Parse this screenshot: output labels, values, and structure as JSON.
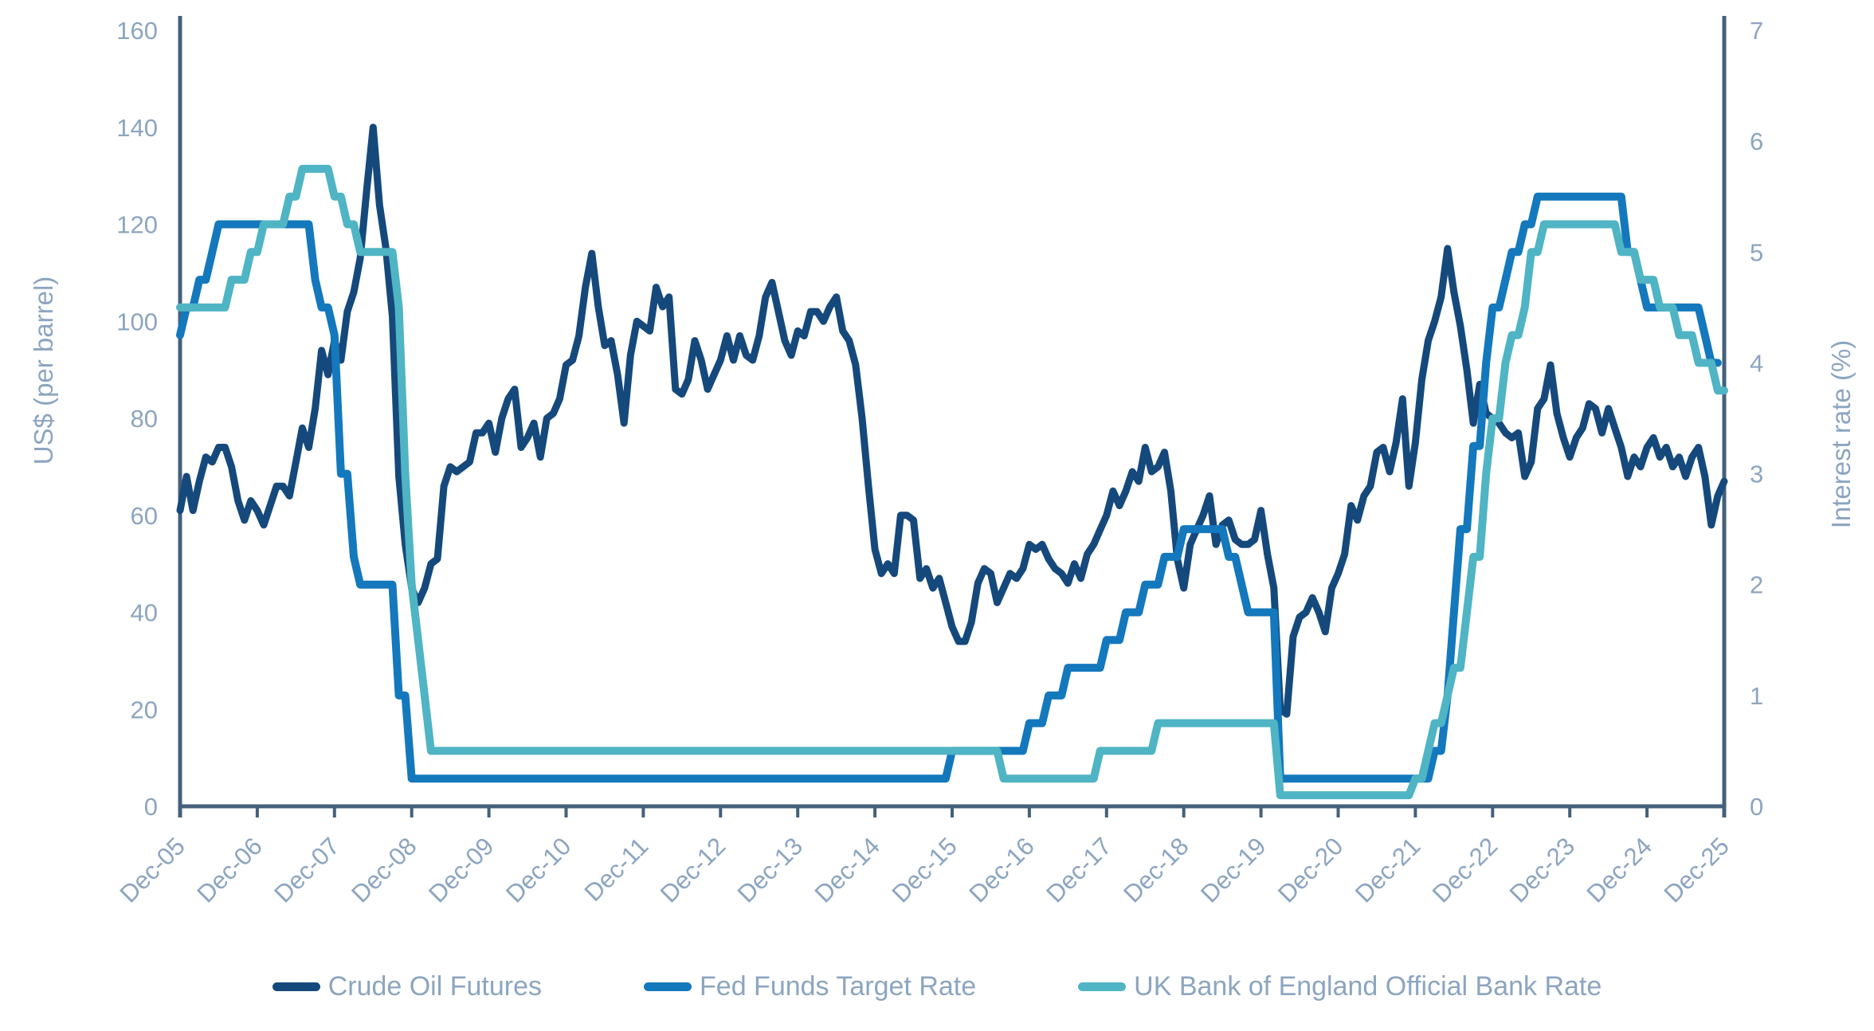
{
  "chart_data": {
    "type": "line",
    "title": "",
    "frequency": "monthly",
    "x_start": "Dec-05",
    "x_end": "Dec-25",
    "x_tick_labels": [
      "Dec-05",
      "Dec-06",
      "Dec-07",
      "Dec-08",
      "Dec-09",
      "Dec-10",
      "Dec-11",
      "Dec-12",
      "Dec-13",
      "Dec-14",
      "Dec-15",
      "Dec-16",
      "Dec-17",
      "Dec-18",
      "Dec-19",
      "Dec-20",
      "Dec-21",
      "Dec-22",
      "Dec-23",
      "Dec-24",
      "Dec-25"
    ],
    "left_axis": {
      "label": "US$ (per barrel)",
      "min": 0,
      "max": 160,
      "step": 20,
      "tick_labels": [
        "0",
        "20",
        "40",
        "60",
        "80",
        "100",
        "120",
        "140",
        "160"
      ]
    },
    "right_axis": {
      "label": "Interest rate (%)",
      "min": 0,
      "max": 7,
      "step": 1,
      "tick_labels": [
        "0",
        "1",
        "2",
        "3",
        "4",
        "5",
        "6",
        "7"
      ]
    },
    "grid": false,
    "legend_position": "bottom",
    "colors": {
      "axis_line": "#44607B",
      "tick_label": "#8CA5C0"
    },
    "series": [
      {
        "name": "Crude Oil Futures",
        "axis": "left",
        "color": "#15497C",
        "stroke_width": 9,
        "values": [
          61,
          68,
          61,
          67,
          72,
          71,
          74,
          74,
          70,
          63,
          59,
          63,
          61,
          58,
          62,
          66,
          66,
          64,
          71,
          78,
          74,
          82,
          94,
          89,
          96,
          92,
          102,
          106,
          113,
          127,
          140,
          124,
          115,
          101,
          68,
          54,
          45,
          42,
          45,
          50,
          51,
          66,
          70,
          69,
          70,
          71,
          77,
          77,
          79,
          73,
          80,
          84,
          86,
          74,
          76,
          79,
          72,
          80,
          81,
          84,
          91,
          92,
          97,
          107,
          114,
          103,
          95,
          96,
          89,
          79,
          93,
          100,
          99,
          98,
          107,
          103,
          105,
          86,
          85,
          88,
          96,
          92,
          86,
          89,
          92,
          97,
          92,
          97,
          93,
          92,
          97,
          105,
          108,
          102,
          96,
          93,
          98,
          97,
          102,
          102,
          100,
          103,
          105,
          98,
          96,
          91,
          80,
          66,
          53,
          48,
          50,
          48,
          60,
          60,
          59,
          47,
          49,
          45,
          47,
          42,
          37,
          34,
          34,
          38,
          46,
          49,
          48,
          42,
          45,
          48,
          47,
          49,
          54,
          53,
          54,
          51,
          49,
          48,
          46,
          50,
          47,
          52,
          54,
          57,
          60,
          65,
          62,
          65,
          69,
          67,
          74,
          69,
          70,
          73,
          65,
          51,
          45,
          54,
          57,
          60,
          64,
          54,
          58,
          59,
          55,
          54,
          54,
          55,
          61,
          52,
          45,
          20,
          19,
          35,
          39,
          40,
          43,
          40,
          36,
          45,
          48,
          52,
          62,
          59,
          64,
          66,
          73,
          74,
          69,
          75,
          84,
          66,
          75,
          88,
          96,
          100,
          105,
          115,
          106,
          99,
          90,
          79,
          87,
          81,
          80,
          79,
          77,
          76,
          77,
          68,
          71,
          82,
          84,
          91,
          81,
          76,
          72,
          76,
          78,
          83,
          82,
          77,
          82,
          78,
          74,
          68,
          72,
          70,
          74,
          76,
          72,
          74,
          70,
          72,
          68,
          72,
          74,
          68,
          58,
          64,
          67
        ]
      },
      {
        "name": "Fed Funds Target Rate",
        "axis": "right",
        "color": "#1478BD",
        "stroke_width": 10,
        "values": [
          4.25,
          4.5,
          4.5,
          4.75,
          4.75,
          5,
          5.25,
          5.25,
          5.25,
          5.25,
          5.25,
          5.25,
          5.25,
          5.25,
          5.25,
          5.25,
          5.25,
          5.25,
          5.25,
          5.25,
          5.25,
          4.75,
          4.5,
          4.5,
          4.25,
          3,
          3,
          2.25,
          2,
          2,
          2,
          2,
          2,
          2,
          1,
          1,
          0.25,
          0.25,
          0.25,
          0.25,
          0.25,
          0.25,
          0.25,
          0.25,
          0.25,
          0.25,
          0.25,
          0.25,
          0.25,
          0.25,
          0.25,
          0.25,
          0.25,
          0.25,
          0.25,
          0.25,
          0.25,
          0.25,
          0.25,
          0.25,
          0.25,
          0.25,
          0.25,
          0.25,
          0.25,
          0.25,
          0.25,
          0.25,
          0.25,
          0.25,
          0.25,
          0.25,
          0.25,
          0.25,
          0.25,
          0.25,
          0.25,
          0.25,
          0.25,
          0.25,
          0.25,
          0.25,
          0.25,
          0.25,
          0.25,
          0.25,
          0.25,
          0.25,
          0.25,
          0.25,
          0.25,
          0.25,
          0.25,
          0.25,
          0.25,
          0.25,
          0.25,
          0.25,
          0.25,
          0.25,
          0.25,
          0.25,
          0.25,
          0.25,
          0.25,
          0.25,
          0.25,
          0.25,
          0.25,
          0.25,
          0.25,
          0.25,
          0.25,
          0.25,
          0.25,
          0.25,
          0.25,
          0.25,
          0.25,
          0.25,
          0.5,
          0.5,
          0.5,
          0.5,
          0.5,
          0.5,
          0.5,
          0.5,
          0.5,
          0.5,
          0.5,
          0.5,
          0.75,
          0.75,
          0.75,
          1,
          1,
          1,
          1.25,
          1.25,
          1.25,
          1.25,
          1.25,
          1.25,
          1.5,
          1.5,
          1.5,
          1.75,
          1.75,
          1.75,
          2,
          2,
          2,
          2.25,
          2.25,
          2.25,
          2.5,
          2.5,
          2.5,
          2.5,
          2.5,
          2.5,
          2.5,
          2.25,
          2.25,
          2,
          1.75,
          1.75,
          1.75,
          1.75,
          1.75,
          0.25,
          0.25,
          0.25,
          0.25,
          0.25,
          0.25,
          0.25,
          0.25,
          0.25,
          0.25,
          0.25,
          0.25,
          0.25,
          0.25,
          0.25,
          0.25,
          0.25,
          0.25,
          0.25,
          0.25,
          0.25,
          0.25,
          0.25,
          0.25,
          0.5,
          0.5,
          1,
          1.75,
          2.5,
          2.5,
          3.25,
          3.25,
          4,
          4.5,
          4.5,
          4.75,
          5,
          5,
          5.25,
          5.25,
          5.5,
          5.5,
          5.5,
          5.5,
          5.5,
          5.5,
          5.5,
          5.5,
          5.5,
          5.5,
          5.5,
          5.5,
          5.5,
          5.5,
          5,
          5,
          4.75,
          4.5,
          4.5,
          4.5,
          4.5,
          4.5,
          4.5,
          4.5,
          4.5,
          4.5,
          4.25,
          4,
          4,
          null
        ]
      },
      {
        "name": "UK Bank of England Official Bank Rate",
        "axis": "right",
        "color": "#4FB4C4",
        "stroke_width": 10,
        "values": [
          4.5,
          4.5,
          4.5,
          4.5,
          4.5,
          4.5,
          4.5,
          4.5,
          4.75,
          4.75,
          4.75,
          5,
          5,
          5.25,
          5.25,
          5.25,
          5.25,
          5.5,
          5.5,
          5.75,
          5.75,
          5.75,
          5.75,
          5.75,
          5.5,
          5.5,
          5.25,
          5.25,
          5,
          5,
          5,
          5,
          5,
          5,
          4.5,
          3,
          2,
          1.5,
          1,
          0.5,
          0.5,
          0.5,
          0.5,
          0.5,
          0.5,
          0.5,
          0.5,
          0.5,
          0.5,
          0.5,
          0.5,
          0.5,
          0.5,
          0.5,
          0.5,
          0.5,
          0.5,
          0.5,
          0.5,
          0.5,
          0.5,
          0.5,
          0.5,
          0.5,
          0.5,
          0.5,
          0.5,
          0.5,
          0.5,
          0.5,
          0.5,
          0.5,
          0.5,
          0.5,
          0.5,
          0.5,
          0.5,
          0.5,
          0.5,
          0.5,
          0.5,
          0.5,
          0.5,
          0.5,
          0.5,
          0.5,
          0.5,
          0.5,
          0.5,
          0.5,
          0.5,
          0.5,
          0.5,
          0.5,
          0.5,
          0.5,
          0.5,
          0.5,
          0.5,
          0.5,
          0.5,
          0.5,
          0.5,
          0.5,
          0.5,
          0.5,
          0.5,
          0.5,
          0.5,
          0.5,
          0.5,
          0.5,
          0.5,
          0.5,
          0.5,
          0.5,
          0.5,
          0.5,
          0.5,
          0.5,
          0.5,
          0.5,
          0.5,
          0.5,
          0.5,
          0.5,
          0.5,
          0.5,
          0.25,
          0.25,
          0.25,
          0.25,
          0.25,
          0.25,
          0.25,
          0.25,
          0.25,
          0.25,
          0.25,
          0.25,
          0.25,
          0.25,
          0.25,
          0.5,
          0.5,
          0.5,
          0.5,
          0.5,
          0.5,
          0.5,
          0.5,
          0.5,
          0.75,
          0.75,
          0.75,
          0.75,
          0.75,
          0.75,
          0.75,
          0.75,
          0.75,
          0.75,
          0.75,
          0.75,
          0.75,
          0.75,
          0.75,
          0.75,
          0.75,
          0.75,
          0.75,
          0.1,
          0.1,
          0.1,
          0.1,
          0.1,
          0.1,
          0.1,
          0.1,
          0.1,
          0.1,
          0.1,
          0.1,
          0.1,
          0.1,
          0.1,
          0.1,
          0.1,
          0.1,
          0.1,
          0.1,
          0.1,
          0.25,
          0.25,
          0.5,
          0.75,
          0.75,
          1,
          1.25,
          1.25,
          1.75,
          2.25,
          2.25,
          3,
          3.5,
          3.5,
          4,
          4.25,
          4.25,
          4.5,
          5,
          5,
          5.25,
          5.25,
          5.25,
          5.25,
          5.25,
          5.25,
          5.25,
          5.25,
          5.25,
          5.25,
          5.25,
          5.25,
          5,
          5,
          5,
          4.75,
          4.75,
          4.75,
          4.5,
          4.5,
          4.5,
          4.25,
          4.25,
          4.25,
          4,
          4,
          4,
          3.75,
          3.75
        ]
      }
    ]
  }
}
